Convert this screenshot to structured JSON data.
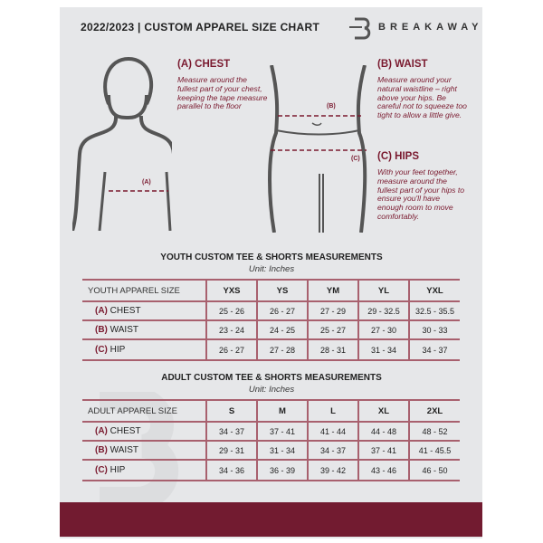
{
  "header": {
    "title": "2022/2023  |  CUSTOM APPAREL SIZE CHART",
    "brand": "BREAKAWAY"
  },
  "measures": {
    "chest": {
      "heading": "(A) CHEST",
      "marker": "(A)",
      "text": "Measure around the fullest part of your chest, keeping the tape measure parallel to the floor"
    },
    "waist": {
      "heading": "(B) WAIST",
      "marker": "(B)",
      "text": "Measure around your natural waistline – right above your hips. Be careful not to squeeze too tight to allow a little give."
    },
    "hips": {
      "heading": "(C) HIPS",
      "marker": "(C)",
      "text": "With your feet together, measure around the fullest part of your hips to ensure you'll have enough room to move comfortably."
    }
  },
  "youth": {
    "title": "YOUTH CUSTOM TEE & SHORTS MEASUREMENTS",
    "unit": "Unit: Inches",
    "header": "YOUTH APPAREL SIZE",
    "sizes": [
      "YXS",
      "YS",
      "YM",
      "YL",
      "YXL"
    ],
    "rows": [
      {
        "code": "(A)",
        "label": "CHEST",
        "values": [
          "25 - 26",
          "26 - 27",
          "27 - 29",
          "29 - 32.5",
          "32.5 - 35.5"
        ]
      },
      {
        "code": "(B)",
        "label": "WAIST",
        "values": [
          "23 - 24",
          "24 - 25",
          "25 - 27",
          "27 - 30",
          "30 - 33"
        ]
      },
      {
        "code": "(C)",
        "label": "HIP",
        "values": [
          "26 - 27",
          "27 - 28",
          "28 - 31",
          "31 - 34",
          "34 - 37"
        ]
      }
    ]
  },
  "adult": {
    "title": "ADULT CUSTOM TEE & SHORTS MEASUREMENTS",
    "unit": "Unit: Inches",
    "header": "ADULT APPAREL SIZE",
    "sizes": [
      "S",
      "M",
      "L",
      "XL",
      "2XL"
    ],
    "rows": [
      {
        "code": "(A)",
        "label": "CHEST",
        "values": [
          "34 - 37",
          "37 - 41",
          "41 - 44",
          "44 - 48",
          "48 - 52"
        ]
      },
      {
        "code": "(B)",
        "label": "WAIST",
        "values": [
          "29 - 31",
          "31 - 34",
          "34 - 37",
          "37 - 41",
          "41 - 45.5"
        ]
      },
      {
        "code": "(C)",
        "label": "HIP",
        "values": [
          "34 - 36",
          "36 - 39",
          "39 - 42",
          "43 - 46",
          "46 - 50"
        ]
      }
    ]
  },
  "colors": {
    "accent": "#721b30",
    "panel": "#e6e7e9"
  }
}
